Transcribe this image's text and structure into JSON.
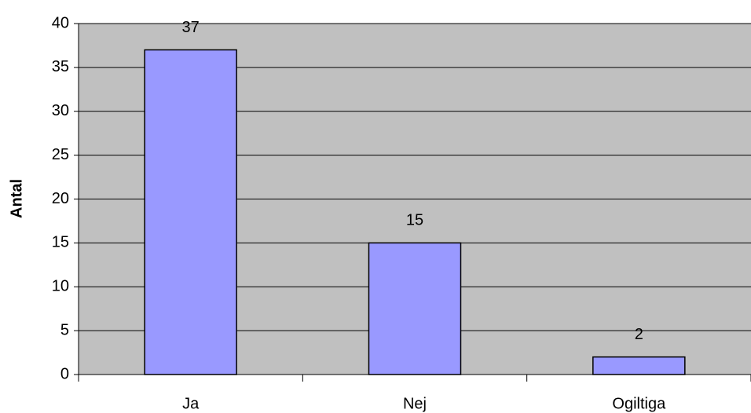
{
  "chart_data": {
    "type": "bar",
    "ylabel": "Antal",
    "categories": [
      "Ja",
      "Nej",
      "Ogiltiga"
    ],
    "values": [
      37,
      15,
      2
    ],
    "color": "#9999ff",
    "background": "#c0c0c0",
    "ylim": [
      0,
      40
    ],
    "yticks": [
      0,
      5,
      10,
      15,
      20,
      25,
      30,
      35,
      40
    ],
    "grid": true
  }
}
